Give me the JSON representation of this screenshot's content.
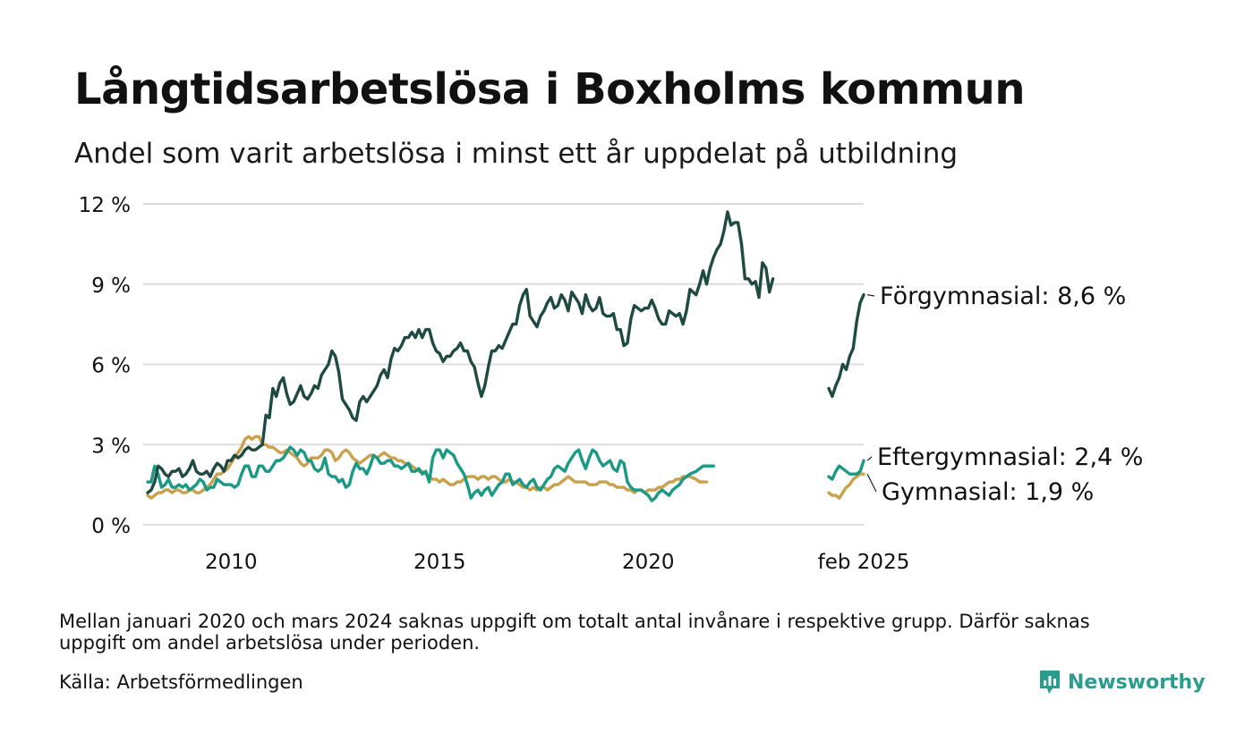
{
  "title": "Långtidsarbetslösa i Boxholms kommun",
  "subtitle": "Andel som varit arbetslösa i minst ett år uppdelat på utbildning",
  "footnote": "Mellan januari 2020 och mars 2024 saknas uppgift om totalt antal invånare i respektive grupp. Därför saknas uppgift om andel arbetslösa under perioden.",
  "source": "Källa: Arbetsförmedlingen",
  "brand": {
    "name": "Newsworthy",
    "icon": "newsworthy-chart-bubble-icon",
    "color": "#2a9d8f"
  },
  "chart_data": {
    "type": "line",
    "y_tick_labels": [
      "0 %",
      "3 %",
      "6 %",
      "9 %",
      "12 %"
    ],
    "y_ticks": [
      0,
      3,
      6,
      9,
      12
    ],
    "ylim": [
      0,
      12
    ],
    "x_tick_labels": [
      "2010",
      "2015",
      "2020",
      "feb 2025"
    ],
    "grid": true,
    "legend": "direct labels at line ends",
    "series": [
      {
        "name": "Förgymnasial",
        "end_label": "Förgymnasial: 8,6 %",
        "color": "#1f4a42",
        "segments": [
          {
            "start": "2008-01",
            "values": [
              1.2,
              1.3,
              1.6,
              2.2,
              2.1,
              1.9,
              1.8,
              2.0,
              2.0,
              2.1,
              1.8,
              1.9,
              2.1,
              2.4,
              2.0,
              1.9,
              1.9,
              2.0,
              1.8,
              2.1,
              2.3,
              2.2,
              2.0,
              2.4,
              2.4,
              2.6,
              2.5,
              2.6,
              2.8,
              2.9,
              2.8,
              2.8,
              2.9,
              3.0,
              4.1,
              4.0,
              5.1,
              4.8,
              5.3,
              5.5,
              4.9,
              4.5,
              4.6,
              4.9,
              5.2,
              4.8,
              4.7,
              4.9,
              5.2,
              5.1,
              5.6,
              5.8,
              6.0,
              6.5,
              6.3,
              5.7,
              4.7,
              4.5,
              4.3,
              4.0,
              3.9,
              4.6,
              4.8,
              4.6,
              4.8,
              5.0,
              5.2,
              5.6,
              5.8,
              5.5,
              6.2,
              6.6,
              6.5,
              6.7,
              7.0,
              7.0,
              7.2,
              7.0,
              7.3,
              7.0,
              7.3,
              7.3,
              6.8,
              6.5,
              6.4,
              6.1,
              6.3,
              6.3,
              6.5,
              6.6,
              6.8,
              6.5,
              6.5,
              6.1,
              5.9,
              5.3,
              4.8,
              5.2,
              5.9,
              6.5,
              6.5,
              6.7,
              6.6,
              6.9,
              7.2,
              7.5,
              7.5,
              8.2,
              8.6,
              8.8,
              7.8,
              7.6,
              7.4,
              7.8,
              8.0,
              8.3,
              8.5,
              8.1,
              8.2,
              8.6,
              8.4,
              8.0,
              8.7,
              8.5,
              8.3,
              7.9,
              8.6,
              8.2,
              8.0,
              8.1,
              8.5,
              7.9,
              7.8,
              7.8,
              7.9,
              7.3,
              7.3,
              6.7,
              6.8,
              7.7,
              8.2,
              8.1,
              8.0,
              8.1,
              8.1,
              8.4,
              8.1,
              7.7,
              7.5,
              7.5,
              8.0,
              7.9,
              7.8,
              7.9,
              7.5,
              8.0,
              8.8,
              8.6,
              9.0,
              9.5,
              9.0,
              9.6,
              10.0,
              10.3,
              10.5,
              11.0,
              11.7,
              11.2,
              11.3,
              11.3,
              10.5,
              9.2,
              9.2,
              9.0,
              9.1,
              8.5,
              9.8,
              9.6,
              8.7,
              9.2
            ]
          },
          {
            "start": "2024-04",
            "values": [
              5.1,
              4.8,
              5.2,
              5.5,
              6.0,
              5.8,
              6.3,
              6.6,
              7.6,
              8.3,
              8.6
            ]
          }
        ]
      },
      {
        "name": "Eftergymnasial",
        "end_label": "Eftergymnasial: 2,4 %",
        "color": "#1a9985",
        "segments": [
          {
            "start": "2008-01",
            "values": [
              1.6,
              1.6,
              2.2,
              1.9,
              1.4,
              1.5,
              1.7,
              1.4,
              1.4,
              1.5,
              1.4,
              1.5,
              1.3,
              1.4,
              1.5,
              1.7,
              1.6,
              1.3,
              1.4,
              1.4,
              1.7,
              1.6,
              1.5,
              1.5,
              1.5,
              1.4,
              1.5,
              1.9,
              2.2,
              2.2,
              1.8,
              1.8,
              2.2,
              2.2,
              2.0,
              2.0,
              2.2,
              2.4,
              2.4,
              2.5,
              2.7,
              2.9,
              2.8,
              2.6,
              2.8,
              2.7,
              2.4,
              2.4,
              2.1,
              2.0,
              2.1,
              2.5,
              1.9,
              1.8,
              1.8,
              1.6,
              1.7,
              1.4,
              1.5,
              2.0,
              2.3,
              2.1,
              2.1,
              1.9,
              2.2,
              2.6,
              2.5,
              2.3,
              2.3,
              2.4,
              2.4,
              2.2,
              2.2,
              2.1,
              2.2,
              2.3,
              2.0,
              2.0,
              2.1,
              1.9,
              2.0,
              1.6,
              2.5,
              2.8,
              2.8,
              2.5,
              2.8,
              2.7,
              2.6,
              2.3,
              2.1,
              1.9,
              1.5,
              1.0,
              1.2,
              1.3,
              1.1,
              1.3,
              1.4,
              1.1,
              1.3,
              1.5,
              1.6,
              1.9,
              1.9,
              1.5,
              1.6,
              1.7,
              1.5,
              1.4,
              1.6,
              1.7,
              1.4,
              1.3,
              1.5,
              1.7,
              1.8,
              2.1,
              2.2,
              2.1,
              2.0,
              2.3,
              2.5,
              2.7,
              2.8,
              2.4,
              2.1,
              2.5,
              2.8,
              2.7,
              2.4,
              2.2,
              2.3,
              2.4,
              2.1,
              2.0,
              2.4,
              2.3,
              1.6,
              1.4,
              1.3,
              1.3,
              1.3,
              1.2,
              1.1,
              0.9,
              1.0,
              1.2,
              1.3,
              1.2,
              1.1,
              1.3,
              1.4,
              1.5,
              1.7,
              1.8,
              1.9,
              2.0,
              2.1,
              2.2,
              2.2,
              2.2,
              2.2
            ]
          },
          {
            "start": "2024-04",
            "values": [
              1.8,
              1.7,
              2.0,
              2.2,
              2.1,
              2.0,
              1.9,
              1.9,
              1.9,
              2.0,
              2.4
            ]
          }
        ]
      },
      {
        "name": "Gymnasial",
        "end_label": "Gymnasial: 1,9 %",
        "color": "#c9a14d",
        "segments": [
          {
            "start": "2008-01",
            "values": [
              1.1,
              1.0,
              1.1,
              1.2,
              1.2,
              1.3,
              1.3,
              1.2,
              1.3,
              1.3,
              1.2,
              1.2,
              1.3,
              1.3,
              1.2,
              1.2,
              1.3,
              1.4,
              1.5,
              1.7,
              1.9,
              1.9,
              2.0,
              2.1,
              2.3,
              2.5,
              2.7,
              2.9,
              3.2,
              3.3,
              3.2,
              3.3,
              3.3,
              3.0,
              3.0,
              2.9,
              2.9,
              2.8,
              2.7,
              2.7,
              2.8,
              2.7,
              2.6,
              2.5,
              2.3,
              2.2,
              2.3,
              2.5,
              2.5,
              2.5,
              2.6,
              2.8,
              2.8,
              2.7,
              2.4,
              2.5,
              2.7,
              2.8,
              2.7,
              2.5,
              2.4,
              2.3,
              2.4,
              2.5,
              2.6,
              2.6,
              2.5,
              2.6,
              2.7,
              2.6,
              2.5,
              2.5,
              2.4,
              2.4,
              2.3,
              2.3,
              2.2,
              2.1,
              2.0,
              2.0,
              1.9,
              1.8,
              1.7,
              1.7,
              1.6,
              1.7,
              1.6,
              1.5,
              1.5,
              1.6,
              1.6,
              1.7,
              1.8,
              1.8,
              1.8,
              1.7,
              1.8,
              1.8,
              1.7,
              1.8,
              1.8,
              1.7,
              1.6,
              1.6,
              1.7,
              1.6,
              1.6,
              1.5,
              1.4,
              1.4,
              1.3,
              1.4,
              1.3,
              1.4,
              1.4,
              1.3,
              1.4,
              1.5,
              1.5,
              1.6,
              1.7,
              1.8,
              1.7,
              1.6,
              1.6,
              1.6,
              1.6,
              1.5,
              1.5,
              1.5,
              1.6,
              1.6,
              1.6,
              1.5,
              1.5,
              1.4,
              1.4,
              1.4,
              1.3,
              1.3,
              1.2,
              1.3,
              1.3,
              1.2,
              1.3,
              1.3,
              1.3,
              1.4,
              1.4,
              1.5,
              1.6,
              1.6,
              1.7,
              1.7,
              1.8,
              1.8,
              1.8,
              1.7,
              1.6,
              1.6,
              1.6
            ]
          },
          {
            "start": "2024-04",
            "values": [
              1.2,
              1.1,
              1.1,
              1.0,
              1.2,
              1.4,
              1.5,
              1.7,
              1.8,
              1.9,
              1.9
            ]
          }
        ]
      }
    ]
  }
}
